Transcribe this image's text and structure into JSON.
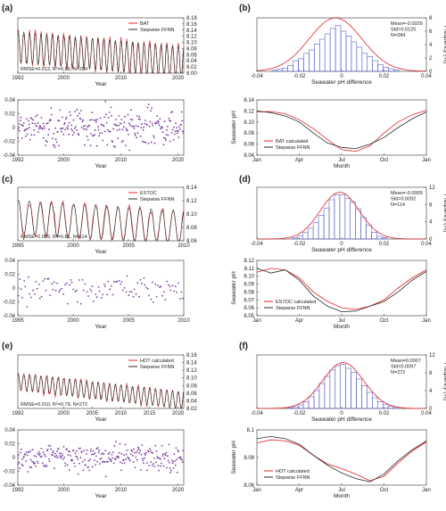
{
  "figure": {
    "rows": [
      {
        "site": "BAT",
        "left_label": "(a)",
        "right_label": "(b)",
        "timeseries": {
          "type": "line",
          "xlim": [
            1992,
            2021
          ],
          "ylim": [
            8.0,
            8.18
          ],
          "yticks": [
            "8.18",
            "8.16",
            "8.14",
            "8.12",
            "8.10",
            "8.08",
            "8.06",
            "8.04",
            "8.02",
            "8.00"
          ],
          "xticks": [
            "1992",
            "2000",
            "2010",
            "2020"
          ],
          "xlabel": "Year",
          "legend": [
            "BAT",
            "Stepwise FFNN"
          ],
          "stats": "RMSE=0.013, R²=0.89, N=284",
          "mean": 8.085,
          "amp": 0.05,
          "trend": -0.0017,
          "samples": 284
        },
        "residuals": {
          "type": "scatter",
          "xlim": [
            1992,
            2021
          ],
          "ylim": [
            -0.04,
            0.04
          ],
          "yticks": [
            "0.04",
            "0.02",
            "0",
            "-0.02",
            "-0.04"
          ],
          "xticks": [
            "1992",
            "2000",
            "2010",
            "2020"
          ],
          "xlabel": "Year",
          "ylabel": "Seawater pH difference",
          "n": 284,
          "std": 0.0125
        },
        "histogram": {
          "type": "bar",
          "xlim": [
            -0.04,
            0.04
          ],
          "ylim": [
            0,
            8
          ],
          "xticks": [
            "-0.04",
            "-0.02",
            "0",
            "0.02",
            "0.04"
          ],
          "yticks": [
            "0",
            "2",
            "4",
            "6",
            "8"
          ],
          "xlabel": "Seawater pH difference",
          "ylabel": "Frequency (%)",
          "stats": [
            "Mean=-0.0029",
            "Std=0.0125",
            "N=284"
          ],
          "mean": -0.0029,
          "std": 0.0125,
          "bin": 0.0025,
          "values": [
            0.2,
            0.3,
            0.5,
            0.9,
            1.6,
            1.9,
            2.7,
            3.2,
            4.1,
            4.8,
            5.6,
            6.4,
            6.9,
            6.0,
            5.3,
            4.4,
            3.6,
            2.7,
            2.2,
            1.6,
            1.0,
            0.6,
            0.4,
            0.2
          ]
        },
        "seasonal": {
          "type": "line",
          "ylim": [
            8.04,
            8.14
          ],
          "yticks": [
            "8.14",
            "8.12",
            "8.10",
            "8.08",
            "8.06",
            "8.04"
          ],
          "xticks": [
            "Jan",
            "Apr",
            "Jul",
            "Oct",
            "Jan"
          ],
          "xlabel": "Month",
          "ylabel": "Seawater pH",
          "legend": [
            "BAT calculated",
            "Stepwise FFNN"
          ],
          "series": [
            {
              "color": "#e0242a",
              "values": [
                8.118,
                8.119,
                8.115,
                8.104,
                8.088,
                8.068,
                8.05,
                8.047,
                8.057,
                8.08,
                8.1,
                8.113,
                8.121
              ]
            },
            {
              "color": "#2a2a2a",
              "values": [
                8.12,
                8.117,
                8.111,
                8.1,
                8.08,
                8.062,
                8.054,
                8.052,
                8.06,
                8.072,
                8.09,
                8.106,
                8.118
              ]
            }
          ]
        }
      },
      {
        "site": "ESTOC",
        "left_label": "(c)",
        "right_label": "(d)",
        "timeseries": {
          "type": "line",
          "xlim": [
            1995,
            2010
          ],
          "ylim": [
            8.05,
            8.14
          ],
          "yticks": [
            "8.14",
            "8.12",
            "8.10",
            "8.08",
            "8.06"
          ],
          "xticks": [
            "1995",
            "2000",
            "2005",
            "2010"
          ],
          "xlabel": "Year",
          "legend": [
            "ESTOC",
            "Stepwise FFNN"
          ],
          "stats": "RMSE=0.009, R²=0.81, N=114",
          "mean": 8.09,
          "amp": 0.028,
          "trend": -0.0012,
          "samples": 114
        },
        "residuals": {
          "type": "scatter",
          "xlim": [
            1995,
            2010
          ],
          "ylim": [
            -0.04,
            0.04
          ],
          "yticks": [
            "0.04",
            "0.02",
            "0",
            "-0.02",
            "-0.04"
          ],
          "xticks": [
            "1995",
            "2000",
            "2005",
            "2010"
          ],
          "xlabel": "Year",
          "ylabel": "Seawater pH difference",
          "n": 114,
          "std": 0.009
        },
        "histogram": {
          "type": "bar",
          "xlim": [
            -0.04,
            0.04
          ],
          "ylim": [
            0,
            12
          ],
          "xticks": [
            "-0.04",
            "-0.02",
            "0",
            "0.02",
            "0.04"
          ],
          "yticks": [
            "0",
            "4",
            "8",
            "12"
          ],
          "xlabel": "Seawater pH difference",
          "ylabel": "Frequency (%)",
          "stats": [
            "Mean=-0.0009",
            "Std=0.0092",
            "N=114"
          ],
          "mean": -0.0009,
          "std": 0.0092,
          "bin": 0.0025,
          "values": [
            0.3,
            0.7,
            1.5,
            2.5,
            3.8,
            5.5,
            7.2,
            9.1,
            10.2,
            10.2,
            9.4,
            8.6,
            7.0,
            5.0,
            3.2,
            1.6,
            0.6,
            0.3
          ]
        },
        "seasonal": {
          "type": "line",
          "ylim": [
            8.05,
            8.12
          ],
          "yticks": [
            "8.12",
            "8.11",
            "8.10",
            "8.09",
            "8.08",
            "8.07",
            "8.06",
            "8.05"
          ],
          "xticks": [
            "Jan",
            "Apr",
            "Jul",
            "Oct",
            "Jan"
          ],
          "xlabel": "Month",
          "ylabel": "Seawater pH",
          "legend": [
            "ESTOC calculated",
            "Stepwise FFNN"
          ],
          "series": [
            {
              "color": "#e0242a",
              "values": [
                8.105,
                8.11,
                8.108,
                8.098,
                8.08,
                8.068,
                8.06,
                8.058,
                8.062,
                8.07,
                8.085,
                8.098,
                8.108
              ]
            },
            {
              "color": "#2a2a2a",
              "values": [
                8.11,
                8.104,
                8.108,
                8.095,
                8.075,
                8.062,
                8.055,
                8.056,
                8.062,
                8.068,
                8.08,
                8.095,
                8.106
              ]
            }
          ]
        }
      },
      {
        "site": "HOT",
        "left_label": "(e)",
        "right_label": "(f)",
        "timeseries": {
          "type": "line",
          "xlim": [
            1992,
            2021
          ],
          "ylim": [
            8.02,
            8.16
          ],
          "yticks": [
            "8.16",
            "8.14",
            "8.12",
            "8.10",
            "8.08",
            "8.06",
            "8.04",
            "8.02"
          ],
          "xticks": [
            "1992",
            "2000",
            "2005",
            "2010",
            "2015",
            "2020"
          ],
          "xlabel": "Year",
          "legend": [
            "HOT calculated",
            "Stepwise FFNN"
          ],
          "stats": "RMSE=0.010, R²=0.79, N=272",
          "mean": 8.09,
          "amp": 0.022,
          "trend": -0.0017,
          "samples": 272
        },
        "residuals": {
          "type": "scatter",
          "xlim": [
            1992,
            2021
          ],
          "ylim": [
            -0.04,
            0.04
          ],
          "yticks": [
            "0.04",
            "0.02",
            "0",
            "-0.02",
            "-0.04"
          ],
          "xticks": [
            "1992",
            "2000",
            "2010",
            "2020"
          ],
          "xlabel": "Year",
          "ylabel": "Seawater pH difference",
          "n": 272,
          "std": 0.0097
        },
        "histogram": {
          "type": "bar",
          "xlim": [
            -0.04,
            0.04
          ],
          "ylim": [
            0,
            12
          ],
          "xticks": [
            "-0.04",
            "-0.02",
            "0",
            "0.02",
            "0.04"
          ],
          "yticks": [
            "0",
            "4",
            "8",
            "12"
          ],
          "xlabel": "Seawater pH difference",
          "ylabel": "Frequency (%)",
          "stats": [
            "Mean=0.0007",
            "Std=0.0097",
            "N=272"
          ],
          "mean": 0.0007,
          "std": 0.0097,
          "bin": 0.0025,
          "values": [
            0.2,
            0.4,
            0.8,
            1.5,
            2.6,
            4.0,
            5.6,
            7.2,
            8.6,
            9.6,
            9.9,
            9.0,
            8.1,
            6.6,
            5.1,
            3.6,
            2.4,
            1.5,
            0.9,
            0.5,
            0.3
          ]
        },
        "seasonal": {
          "type": "line",
          "ylim": [
            8.06,
            8.11
          ],
          "yticks": [
            "8.1",
            "8.08",
            "8.06"
          ],
          "xticks": [
            "Jan",
            "Apr",
            "Jul",
            "Oct",
            "Jan"
          ],
          "xlabel": "Month",
          "ylabel": "Seawater pH",
          "legend": [
            "HOT calculated",
            "Stepwise FFNN"
          ],
          "series": [
            {
              "color": "#e0242a",
              "values": [
                8.098,
                8.101,
                8.1,
                8.096,
                8.087,
                8.079,
                8.075,
                8.07,
                8.064,
                8.068,
                8.08,
                8.091,
                8.099
              ]
            },
            {
              "color": "#2a2a2a",
              "values": [
                8.102,
                8.104,
                8.102,
                8.097,
                8.087,
                8.078,
                8.071,
                8.066,
                8.063,
                8.07,
                8.082,
                8.092,
                8.1
              ]
            }
          ]
        }
      }
    ]
  }
}
